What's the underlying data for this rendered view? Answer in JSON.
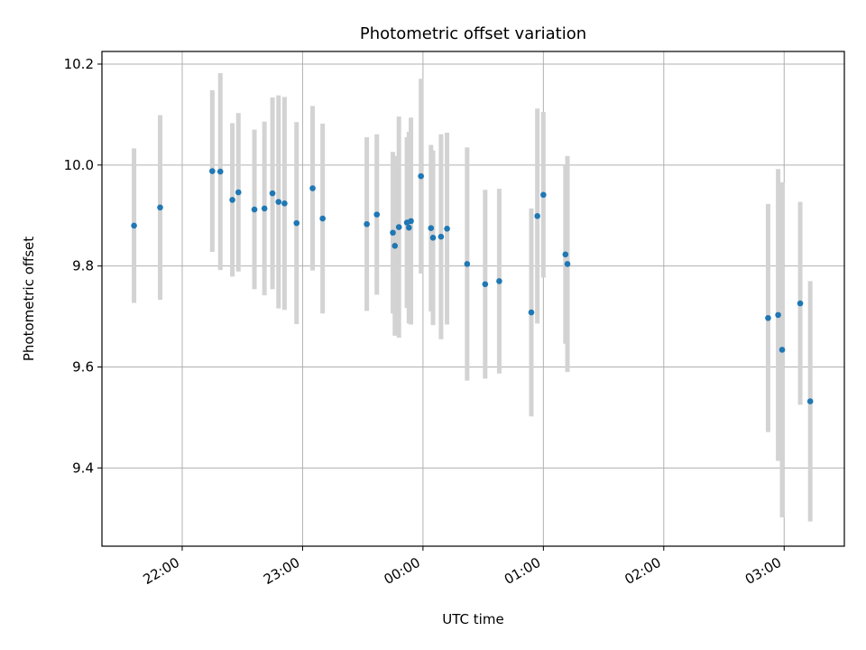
{
  "chart_data": {
    "type": "scatter",
    "title": "Photometric offset variation",
    "xlabel": "UTC time",
    "ylabel": "Photometric offset",
    "x_unit": "time of day (UTC)",
    "xlim": [
      "21:20",
      "03:30"
    ],
    "ylim": [
      9.245,
      10.225
    ],
    "x_ticks": [
      "22:00",
      "23:00",
      "00:00",
      "01:00",
      "02:00",
      "03:00"
    ],
    "y_ticks": [
      "9.4",
      "9.6",
      "9.8",
      "10.0",
      "10.2"
    ],
    "grid": true,
    "legend": "none",
    "colors": {
      "point": "#1f77b4",
      "errorbar": "#d3d3d3",
      "grid": "#b0b0b0",
      "axes": "#000000"
    },
    "series": [
      {
        "points": [
          {
            "x": "21:36",
            "y": 9.88,
            "err": 0.153
          },
          {
            "x": "21:49",
            "y": 9.916,
            "err": 0.183
          },
          {
            "x": "22:15",
            "y": 9.988,
            "err": 0.16
          },
          {
            "x": "22:19",
            "y": 9.987,
            "err": 0.195
          },
          {
            "x": "22:25",
            "y": 9.931,
            "err": 0.152
          },
          {
            "x": "22:28",
            "y": 9.946,
            "err": 0.157
          },
          {
            "x": "22:36",
            "y": 9.912,
            "err": 0.158
          },
          {
            "x": "22:41",
            "y": 9.914,
            "err": 0.172
          },
          {
            "x": "22:45",
            "y": 9.944,
            "err": 0.19
          },
          {
            "x": "22:48",
            "y": 9.927,
            "err": 0.211
          },
          {
            "x": "22:51",
            "y": 9.924,
            "err": 0.211
          },
          {
            "x": "22:57",
            "y": 9.885,
            "err": 0.2
          },
          {
            "x": "23:05",
            "y": 9.954,
            "err": 0.163
          },
          {
            "x": "23:10",
            "y": 9.894,
            "err": 0.188
          },
          {
            "x": "23:32",
            "y": 9.883,
            "err": 0.172
          },
          {
            "x": "23:37",
            "y": 9.902,
            "err": 0.159
          },
          {
            "x": "23:45",
            "y": 9.866,
            "err": 0.16
          },
          {
            "x": "23:46",
            "y": 9.84,
            "err": 0.178
          },
          {
            "x": "23:48",
            "y": 9.877,
            "err": 0.219
          },
          {
            "x": "23:52",
            "y": 9.886,
            "err": 0.169
          },
          {
            "x": "23:53",
            "y": 9.876,
            "err": 0.19
          },
          {
            "x": "23:54",
            "y": 9.889,
            "err": 0.205
          },
          {
            "x": "23:59",
            "y": 9.978,
            "err": 0.193
          },
          {
            "x": "00:04",
            "y": 9.875,
            "err": 0.165
          },
          {
            "x": "00:05",
            "y": 9.856,
            "err": 0.173
          },
          {
            "x": "00:09",
            "y": 9.858,
            "err": 0.203
          },
          {
            "x": "00:12",
            "y": 9.874,
            "err": 0.19
          },
          {
            "x": "00:22",
            "y": 9.804,
            "err": 0.231
          },
          {
            "x": "00:31",
            "y": 9.764,
            "err": 0.187
          },
          {
            "x": "00:38",
            "y": 9.77,
            "err": 0.183
          },
          {
            "x": "00:54",
            "y": 9.708,
            "err": 0.206
          },
          {
            "x": "00:57",
            "y": 9.899,
            "err": 0.213
          },
          {
            "x": "01:00",
            "y": 9.941,
            "err": 0.164
          },
          {
            "x": "01:11",
            "y": 9.823,
            "err": 0.177
          },
          {
            "x": "01:12",
            "y": 9.804,
            "err": 0.214
          },
          {
            "x": "02:52",
            "y": 9.697,
            "err": 0.226
          },
          {
            "x": "02:57",
            "y": 9.703,
            "err": 0.289
          },
          {
            "x": "02:59",
            "y": 9.634,
            "err": 0.332
          },
          {
            "x": "03:08",
            "y": 9.726,
            "err": 0.201
          },
          {
            "x": "03:13",
            "y": 9.532,
            "err": 0.238
          }
        ]
      }
    ]
  }
}
